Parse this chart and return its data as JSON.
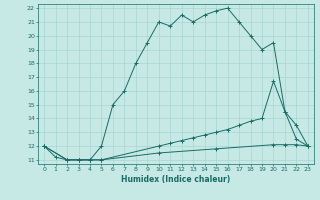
{
  "xlabel": "Humidex (Indice chaleur)",
  "xlim": [
    -0.5,
    23.5
  ],
  "ylim": [
    10.7,
    22.3
  ],
  "yticks": [
    11,
    12,
    13,
    14,
    15,
    16,
    17,
    18,
    19,
    20,
    21,
    22
  ],
  "xticks": [
    0,
    1,
    2,
    3,
    4,
    5,
    6,
    7,
    8,
    9,
    10,
    11,
    12,
    13,
    14,
    15,
    16,
    17,
    18,
    19,
    20,
    21,
    22,
    23
  ],
  "bg_color": "#c6e9e6",
  "line_color": "#1a6b65",
  "grid_color": "#a8d5d2",
  "line1_x": [
    0,
    1,
    2,
    3,
    4,
    5,
    6,
    7,
    8,
    9,
    10,
    11,
    12,
    13,
    14,
    15,
    16,
    17,
    18,
    19,
    20,
    21,
    22,
    23
  ],
  "line1_y": [
    12,
    11.2,
    11.0,
    11.0,
    11.0,
    12.0,
    15.0,
    16.0,
    18.0,
    19.5,
    21.0,
    20.7,
    21.5,
    21.0,
    21.5,
    21.8,
    22.0,
    21.0,
    20.0,
    19.0,
    19.5,
    14.5,
    13.5,
    12.0
  ],
  "line2_x": [
    0,
    2,
    3,
    4,
    5,
    10,
    11,
    12,
    13,
    14,
    15,
    16,
    17,
    18,
    19,
    20,
    21,
    22,
    23
  ],
  "line2_y": [
    12,
    11.0,
    11.0,
    11.0,
    11.0,
    12.0,
    12.2,
    12.4,
    12.6,
    12.8,
    13.0,
    13.2,
    13.5,
    13.8,
    14.0,
    16.7,
    14.5,
    12.5,
    12.0
  ],
  "line3_x": [
    0,
    2,
    3,
    4,
    5,
    10,
    15,
    20,
    21,
    22,
    23
  ],
  "line3_y": [
    12,
    11.0,
    11.0,
    11.0,
    11.0,
    11.5,
    11.8,
    12.1,
    12.1,
    12.1,
    12.0
  ]
}
